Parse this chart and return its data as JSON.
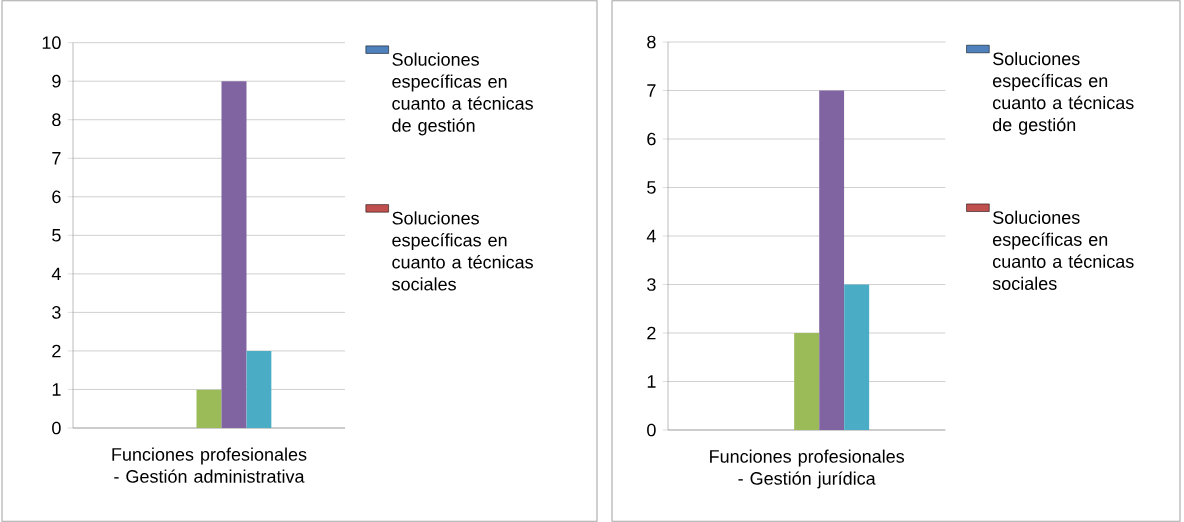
{
  "chart_data": [
    {
      "type": "bar",
      "categories": [
        "Funciones profesionales - Gestión administrativa"
      ],
      "series": [
        {
          "name": "Soluciones específicas en cuanto a técnicas de gestión",
          "color": "#4f81bd",
          "values": [
            0
          ]
        },
        {
          "name": "Soluciones específicas en cuanto a técnicas sociales",
          "color": "#c0504d",
          "values": [
            0
          ]
        },
        {
          "color": "#9bbb59",
          "values": [
            1
          ]
        },
        {
          "color": "#8064a2",
          "values": [
            9
          ]
        },
        {
          "color": "#4bacc6",
          "values": [
            2
          ]
        }
      ],
      "ylim": [
        0,
        10
      ],
      "yticks": [
        0,
        1,
        2,
        3,
        4,
        5,
        6,
        7,
        8,
        9,
        10
      ],
      "grid": "y",
      "legend": "right"
    },
    {
      "type": "bar",
      "categories": [
        "Funciones profesionales - Gestión jurídica"
      ],
      "series": [
        {
          "name": "Soluciones específicas en cuanto a técnicas de gestión",
          "color": "#4f81bd",
          "values": [
            0
          ]
        },
        {
          "name": "Soluciones específicas en cuanto a técnicas sociales",
          "color": "#c0504d",
          "values": [
            0
          ]
        },
        {
          "color": "#9bbb59",
          "values": [
            2
          ]
        },
        {
          "color": "#8064a2",
          "values": [
            7
          ]
        },
        {
          "color": "#4bacc6",
          "values": [
            3
          ]
        }
      ],
      "ylim": [
        0,
        8
      ],
      "yticks": [
        0,
        1,
        2,
        3,
        4,
        5,
        6,
        7,
        8
      ],
      "grid": "y",
      "legend": "right"
    }
  ]
}
